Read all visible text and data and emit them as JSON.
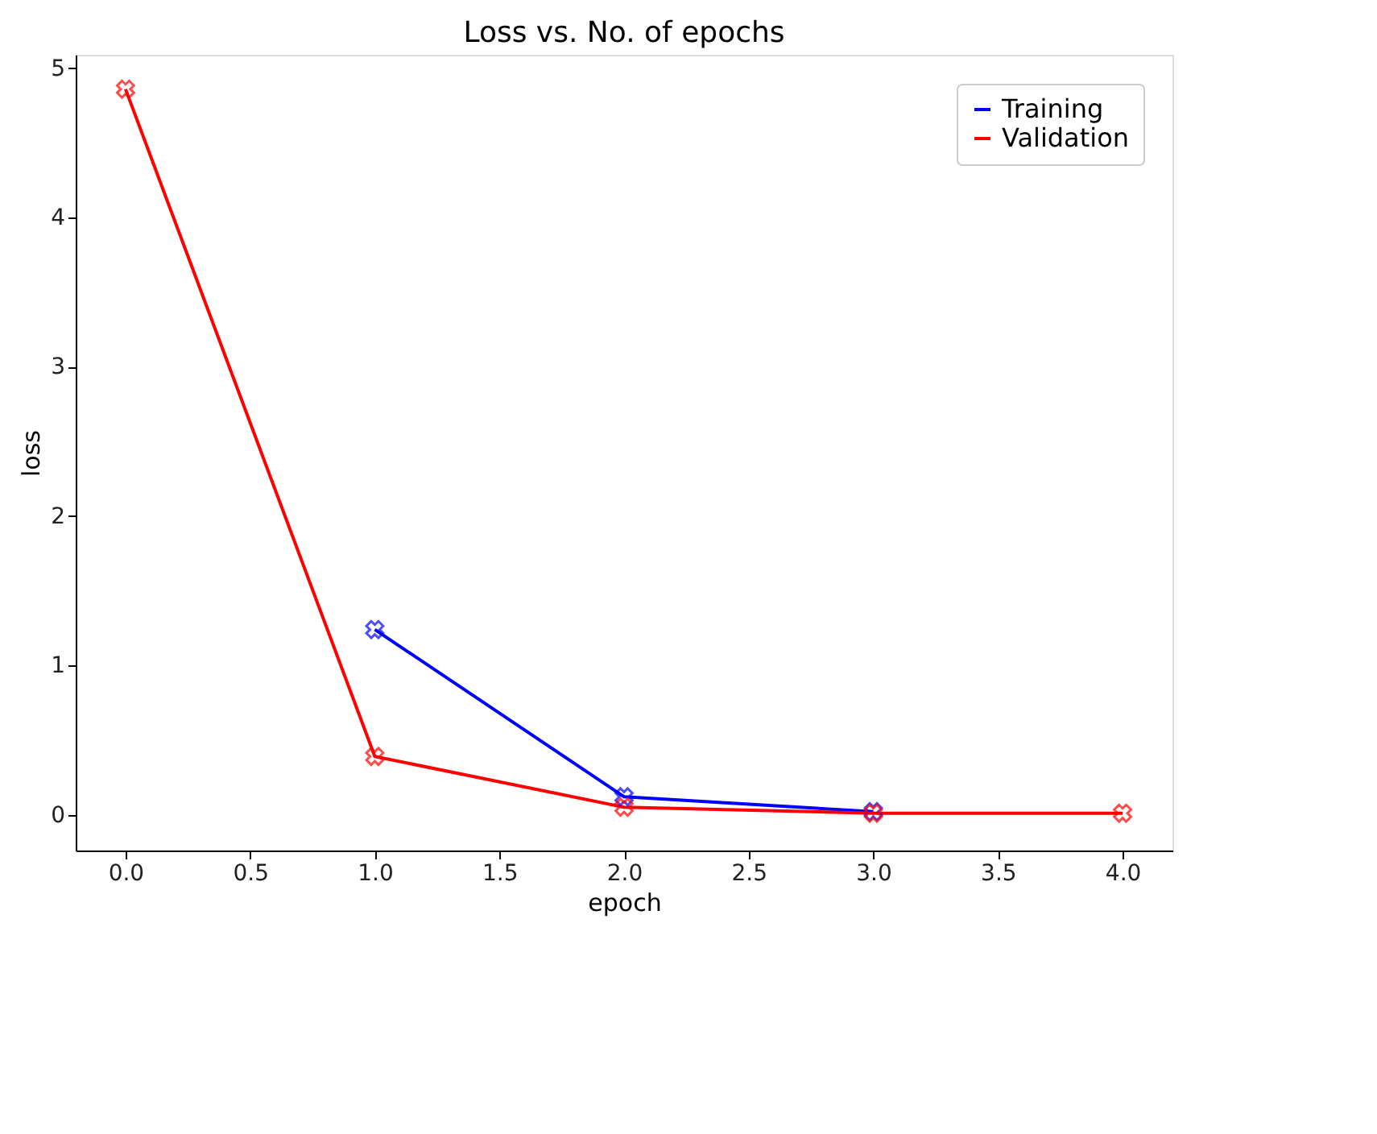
{
  "chart_data": {
    "type": "line",
    "title": "Loss vs. No. of epochs",
    "xlabel": "epoch",
    "ylabel": "loss",
    "series": [
      {
        "name": "Training",
        "color": "#0000ff",
        "x": [
          1,
          2,
          3
        ],
        "values": [
          1.24,
          0.12,
          0.02
        ]
      },
      {
        "name": "Validation",
        "color": "#ff0000",
        "x": [
          0,
          1,
          2,
          3,
          4
        ],
        "values": [
          4.86,
          0.39,
          0.05,
          0.01,
          0.01
        ]
      }
    ],
    "xlim": [
      -0.2,
      4.2
    ],
    "ylim": [
      -0.24,
      5.09
    ],
    "xticks": [
      {
        "value": 0,
        "label": "0.0"
      },
      {
        "value": 0.5,
        "label": "0.5"
      },
      {
        "value": 1,
        "label": "1.0"
      },
      {
        "value": 1.5,
        "label": "1.5"
      },
      {
        "value": 2,
        "label": "2.0"
      },
      {
        "value": 2.5,
        "label": "2.5"
      },
      {
        "value": 3,
        "label": "3.0"
      },
      {
        "value": 3.5,
        "label": "3.5"
      },
      {
        "value": 4,
        "label": "4.0"
      }
    ],
    "yticks": [
      0,
      1,
      2,
      3,
      4,
      5
    ],
    "legend": "top right",
    "marker": "cross",
    "line_style": "solid",
    "grid": false
  }
}
